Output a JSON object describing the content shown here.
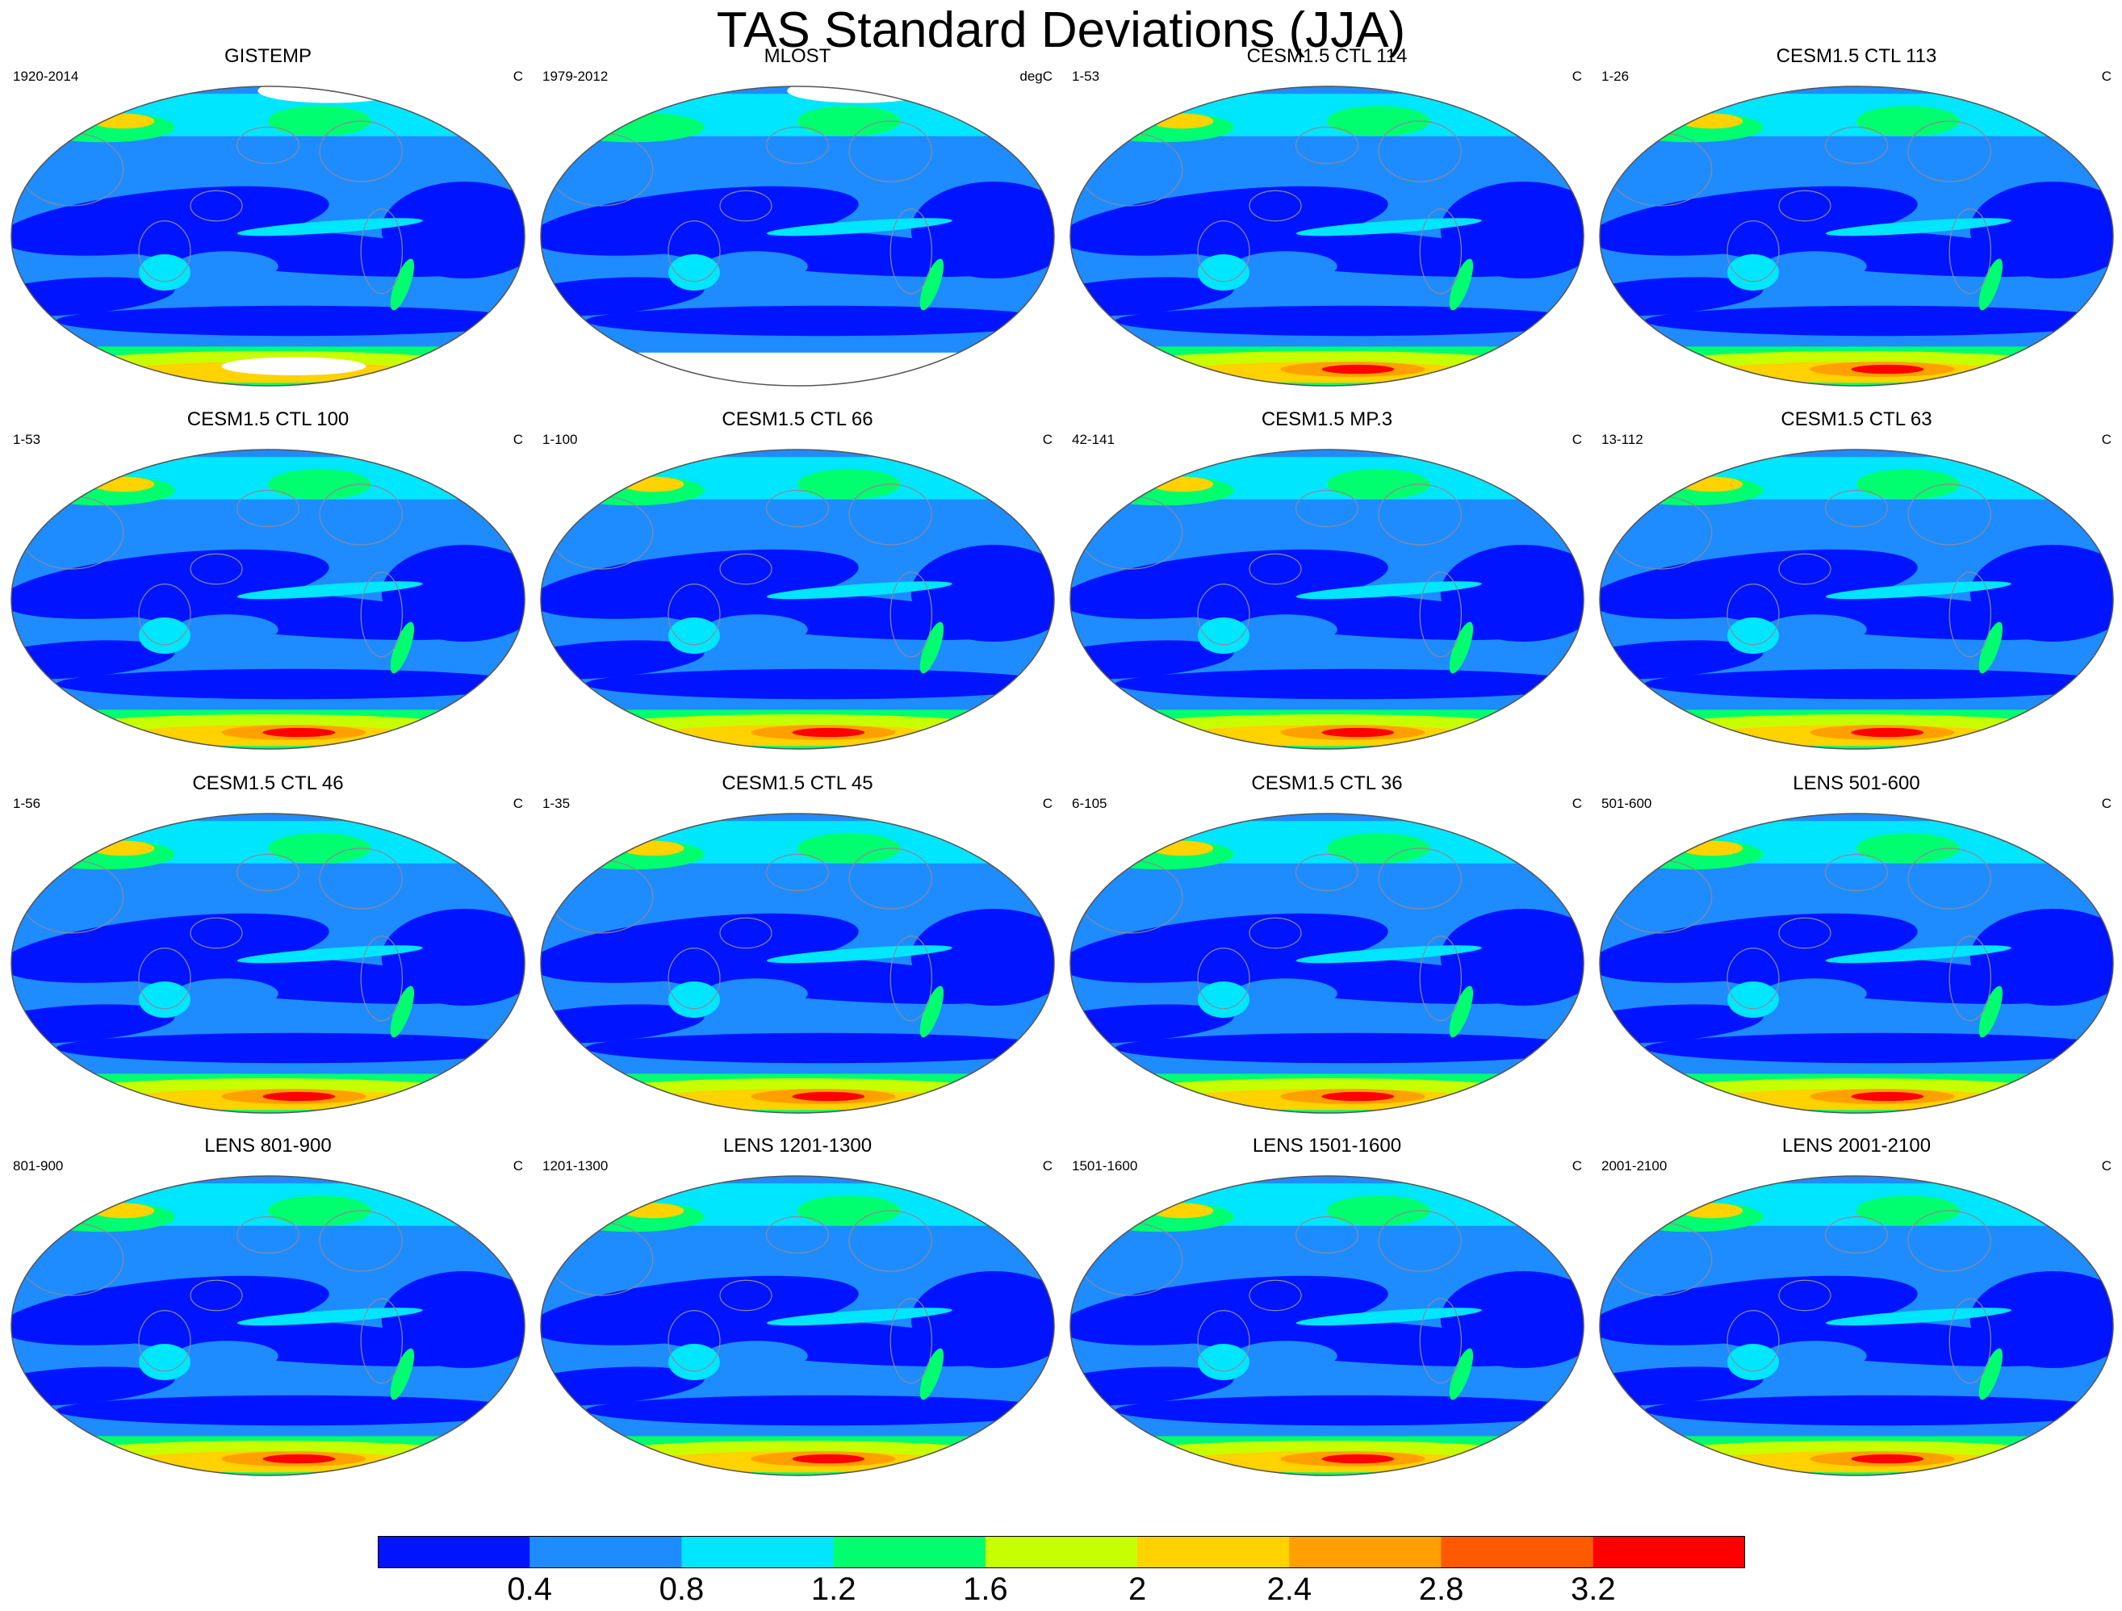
{
  "title": "TAS Standard Deviations (JJA)",
  "colors": {
    "ocean_land_mask": "#ffffff",
    "coastline": "#8a8a9a",
    "outline": "#555555"
  },
  "colorbar": {
    "labels": [
      "0.4",
      "0.8",
      "1.2",
      "1.6",
      "2",
      "2.4",
      "2.8",
      "3.2"
    ],
    "colors": [
      "#0014ff",
      "#1e8cff",
      "#00e6ff",
      "#00ff6e",
      "#c8ff00",
      "#ffd200",
      "#ffa000",
      "#ff5a00",
      "#ff0000"
    ]
  },
  "panels": [
    {
      "title": "GISTEMP",
      "left": "1920-2014",
      "right": "C",
      "polar_south": "mixed",
      "missing_south": true,
      "missing_north": true
    },
    {
      "title": "MLOST",
      "left": "1979-2012",
      "right": "degC",
      "polar_south": "missing",
      "missing_south": true,
      "missing_north": true
    },
    {
      "title": "CESM1.5 CTL 114",
      "left": "1-53",
      "right": "C",
      "polar_south": "high"
    },
    {
      "title": "CESM1.5 CTL 113",
      "left": "1-26",
      "right": "C",
      "polar_south": "high"
    },
    {
      "title": "CESM1.5 CTL 100",
      "left": "1-53",
      "right": "C",
      "polar_south": "high"
    },
    {
      "title": "CESM1.5 CTL 66",
      "left": "1-100",
      "right": "C",
      "polar_south": "high"
    },
    {
      "title": "CESM1.5 MP.3",
      "left": "42-141",
      "right": "C",
      "polar_south": "high"
    },
    {
      "title": "CESM1.5 CTL 63",
      "left": "13-112",
      "right": "C",
      "polar_south": "high"
    },
    {
      "title": "CESM1.5 CTL 46",
      "left": "1-56",
      "right": "C",
      "polar_south": "high"
    },
    {
      "title": "CESM1.5 CTL 45",
      "left": "1-35",
      "right": "C",
      "polar_south": "high"
    },
    {
      "title": "CESM1.5 CTL 36",
      "left": "6-105",
      "right": "C",
      "polar_south": "high"
    },
    {
      "title": "LENS 501-600",
      "left": "501-600",
      "right": "C",
      "polar_south": "high"
    },
    {
      "title": "LENS 801-900",
      "left": "801-900",
      "right": "C",
      "polar_south": "high"
    },
    {
      "title": "LENS 1201-1300",
      "left": "1201-1300",
      "right": "C",
      "polar_south": "high"
    },
    {
      "title": "LENS 1501-1600",
      "left": "1501-1600",
      "right": "C",
      "polar_south": "high"
    },
    {
      "title": "LENS 2001-2100",
      "left": "2001-2100",
      "right": "C",
      "polar_south": "high"
    }
  ]
}
